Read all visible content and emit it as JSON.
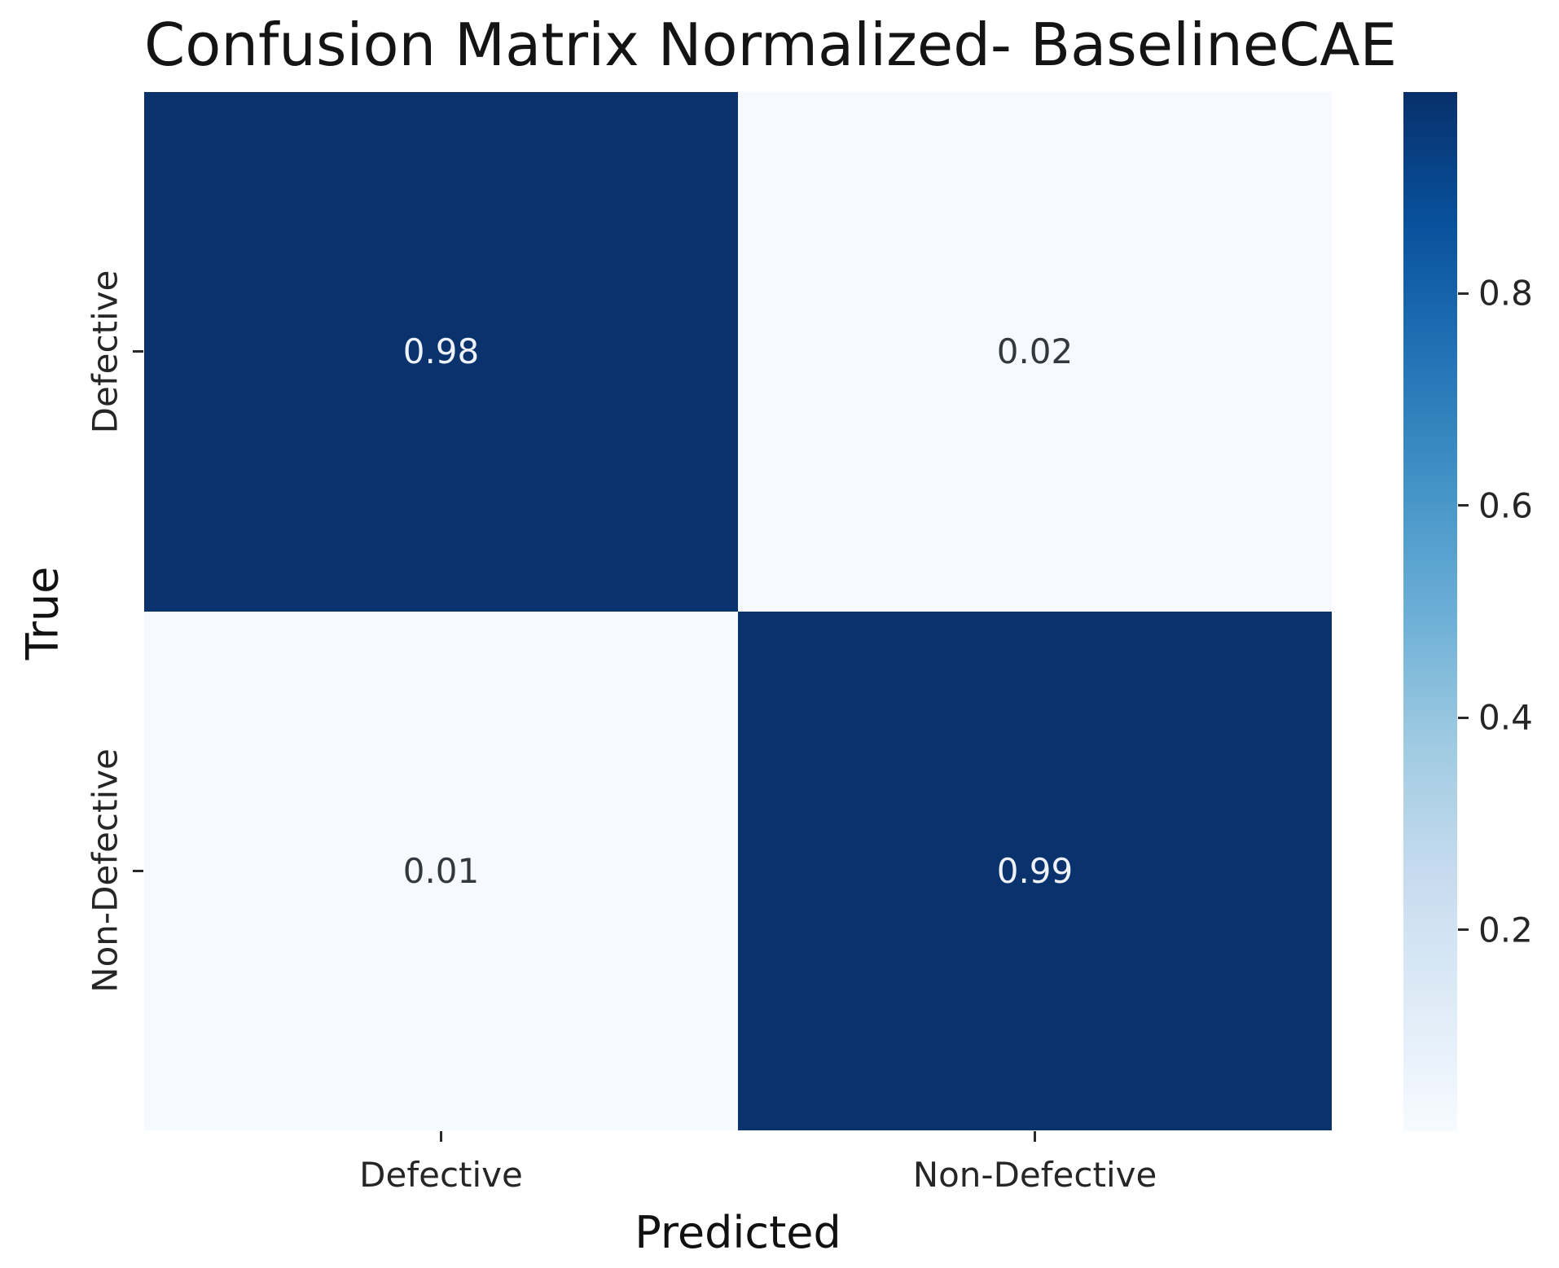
{
  "title": "Confusion Matrix Normalized- BaselineCAE",
  "chart_data": {
    "type": "heatmap",
    "title": "Confusion Matrix Normalized- BaselineCAE",
    "xlabel": "Predicted",
    "ylabel": "True",
    "x_categories": [
      "Defective",
      "Non-Defective"
    ],
    "y_categories": [
      "Defective",
      "Non-Defective"
    ],
    "values": [
      [
        0.98,
        0.02
      ],
      [
        0.01,
        0.99
      ]
    ],
    "value_labels": [
      [
        "0.98",
        "0.02"
      ],
      [
        "0.01",
        "0.99"
      ]
    ],
    "vmin": 0.01,
    "vmax": 0.99,
    "colormap": "Blues",
    "colorbar_tick_values": [
      0.8,
      0.6,
      0.4,
      0.2
    ],
    "colorbar_tick_labels": [
      "0.8",
      "0.6",
      "0.4",
      "0.2"
    ],
    "legend": "colorbar-right",
    "grid": false
  },
  "colors": {
    "cell_dark": "#0a336e",
    "cell_light": "#f6fafe",
    "text_on_dark": "#eff2f8",
    "text_on_light": "#333840",
    "tick_color": "#2a2a2a",
    "title_color": "#141414",
    "blues_gradient_bottom_to_top": [
      "#f7fbff",
      "#deebf7",
      "#c6dbef",
      "#9ecae1",
      "#6baed6",
      "#4292c6",
      "#2171b5",
      "#08519c",
      "#08306b"
    ]
  }
}
